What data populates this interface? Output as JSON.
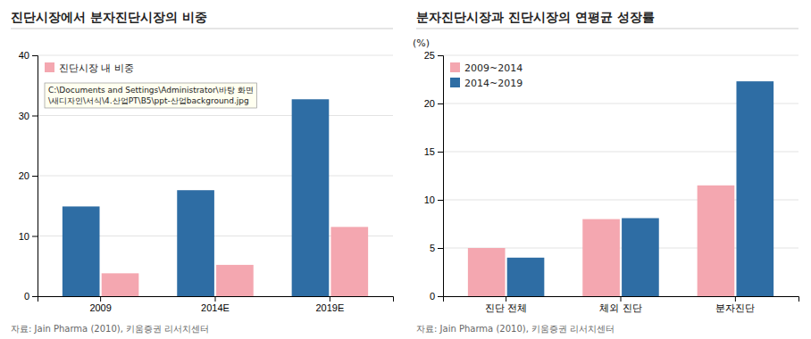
{
  "chart_data": [
    {
      "type": "bar",
      "title": "진단시장에서 분자진단시장의 비중",
      "categories": [
        "2009",
        "2014E",
        "2019E"
      ],
      "series": [
        {
          "color": "#2E6DA4",
          "values": [
            14.9,
            17.6,
            32.7
          ]
        },
        {
          "name": "진단시장 내 비중",
          "color": "#F4A7B0",
          "values": [
            3.8,
            5.2,
            11.5
          ]
        }
      ],
      "ylim": [
        0,
        40
      ],
      "yticks": [
        0,
        10,
        20,
        30,
        40
      ],
      "grid": true,
      "legend": "upper left",
      "annotations": [
        "C:\\Documents and Settings\\Administrator\\바탕 화면",
        "\\새디자인\\서식\\4.산업PT\\B5\\ppt-산업background.jpg"
      ],
      "source": "자료: Jain Pharma (2010), 키움증권 리서치센터"
    },
    {
      "type": "bar",
      "title": "분자진단시장과 진단시장의 연평균 성장률",
      "categories": [
        "진단 전체",
        "체외 진단",
        "분자진단"
      ],
      "series": [
        {
          "name": "2009~2014",
          "color": "#F4A7B0",
          "values": [
            5.0,
            8.0,
            11.5
          ]
        },
        {
          "name": "2014~2019",
          "color": "#2E6DA4",
          "values": [
            4.0,
            8.1,
            22.3
          ]
        }
      ],
      "ylabel": "(%)",
      "ylim": [
        0,
        25
      ],
      "yticks": [
        0,
        5,
        10,
        15,
        20,
        25
      ],
      "grid": true,
      "legend": "upper left",
      "source": "자료: Jain Pharma (2010), 키움증권 리서치센터"
    }
  ]
}
